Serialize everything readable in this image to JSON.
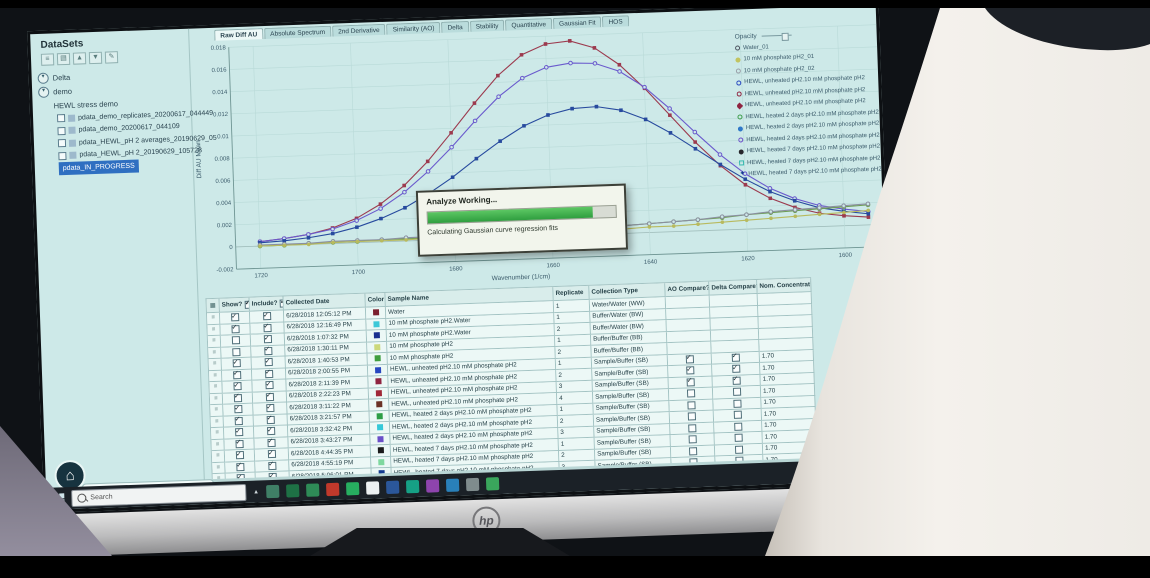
{
  "monitor": {
    "brand_logo": "hp"
  },
  "app": {
    "sidebar": {
      "title": "DataSets",
      "toolbar_icons": [
        "new-dataset-icon",
        "open-dataset-icon",
        "import-icon",
        "export-icon",
        "edit-icon"
      ],
      "toolbar_glyphs": [
        "≡",
        "▤",
        "▲",
        "▼",
        "✎"
      ],
      "tree": [
        {
          "type": "node",
          "label": "Delta",
          "expander": true
        },
        {
          "type": "node",
          "label": "demo",
          "expander": true
        },
        {
          "type": "node",
          "label": "HEWL stress demo",
          "expander": false
        },
        {
          "type": "leaf",
          "label": "pdata_demo_replicates_20200617_044449",
          "checked": false,
          "selected": false
        },
        {
          "type": "leaf",
          "label": "pdata_demo_20200617_044109",
          "checked": false,
          "selected": false
        },
        {
          "type": "leaf",
          "label": "pdata_HEWL_pH 2 averages_20190629_05",
          "checked": false,
          "selected": false
        },
        {
          "type": "leaf",
          "label": "pdata_HEWL_pH 2_20190629_105728",
          "checked": false,
          "selected": false
        },
        {
          "type": "leaf",
          "label": "pdata_IN_PROGRESS",
          "checked": false,
          "selected": true
        }
      ]
    },
    "tabs": {
      "items": [
        "Raw Diff AU",
        "Absolute Spectrum",
        "2nd Derivative",
        "Similarity (AO)",
        "Delta",
        "Stability",
        "Quantitative",
        "Gaussian Fit",
        "HOS"
      ],
      "active": "Raw Diff AU"
    },
    "legend": {
      "opacity_label": "Opacity",
      "entries": [
        {
          "label": "Water_01",
          "color": "#4a505c",
          "marker": "circle-open"
        },
        {
          "label": "10 mM phosphate pH2_01",
          "color": "#c2c460",
          "marker": "circle"
        },
        {
          "label": "10 mM phosphate pH2_02",
          "color": "#9aa0a8",
          "marker": "circle-open"
        },
        {
          "label": "HEWL, unheated pH2.10 mM phosphate pH2",
          "color": "#2747c0",
          "marker": "circle-open"
        },
        {
          "label": "HEWL, unheated pH2.10 mM phosphate pH2",
          "color": "#8f2440",
          "marker": "circle-open"
        },
        {
          "label": "HEWL, unheated pH2.10 mM phosphate pH2",
          "color": "#8f2440",
          "marker": "diamond"
        },
        {
          "label": "HEWL, heated 2 days pH2.10 mM phosphate pH2",
          "color": "#3f9e4d",
          "marker": "circle-open"
        },
        {
          "label": "HEWL, heated 2 days pH2.10 mM phosphate pH2",
          "color": "#2f78c8",
          "marker": "circle"
        },
        {
          "label": "HEWL, heated 2 days pH2.10 mM phosphate pH2",
          "color": "#6a4fc8",
          "marker": "circle-open"
        },
        {
          "label": "HEWL, heated 7 days pH2.10 mM phosphate pH2",
          "color": "#26262b",
          "marker": "circle"
        },
        {
          "label": "HEWL, heated 7 days pH2.10 mM phosphate pH2",
          "color": "#35b8ae",
          "marker": "square-open"
        },
        {
          "label": "HEWL, heated 7 days pH2.10 mM phosphate pH2",
          "color": "#123a8f",
          "marker": "star"
        }
      ]
    },
    "dialog": {
      "title": "Analyze Working...",
      "message": "Calculating Gaussian curve regression fits",
      "progress_percent": 88
    },
    "table": {
      "headers": [
        {
          "label": "",
          "checkbox": false
        },
        {
          "label": "Show?",
          "checkbox": true
        },
        {
          "label": "Include?",
          "checkbox": true
        },
        {
          "label": "Collected Date",
          "checkbox": false
        },
        {
          "label": "Color",
          "checkbox": false
        },
        {
          "label": "Sample Name",
          "checkbox": false
        },
        {
          "label": "Replicate",
          "checkbox": false
        },
        {
          "label": "Collection Type",
          "checkbox": false
        },
        {
          "label": "AO Compare?",
          "checkbox": true
        },
        {
          "label": "Delta Compare?",
          "checkbox": true
        },
        {
          "label": "Nom. Concentration",
          "checkbox": false
        }
      ],
      "rows": [
        {
          "show": true,
          "include": true,
          "date": "6/28/2018 12:05:12 PM",
          "color": "#7a1f2e",
          "sample": "Water",
          "replicate": "1",
          "collection": "Water/Water (WW)",
          "ao": null,
          "delta": null,
          "conc": ""
        },
        {
          "show": true,
          "include": true,
          "date": "6/28/2018 12:16:49 PM",
          "color": "#3cc8d8",
          "sample": "10 mM phosphate pH2.Water",
          "replicate": "1",
          "collection": "Buffer/Water (BW)",
          "ao": null,
          "delta": null,
          "conc": ""
        },
        {
          "show": false,
          "include": true,
          "date": "6/28/2018 1:07:32 PM",
          "color": "#1a2f8f",
          "sample": "10 mM phosphate pH2.Water",
          "replicate": "2",
          "collection": "Buffer/Water (BW)",
          "ao": null,
          "delta": null,
          "conc": ""
        },
        {
          "show": false,
          "include": true,
          "date": "6/28/2018 1:30:11 PM",
          "color": "#ccd87a",
          "sample": "10 mM phosphate pH2",
          "replicate": "1",
          "collection": "Buffer/Buffer (BB)",
          "ao": null,
          "delta": null,
          "conc": ""
        },
        {
          "show": true,
          "include": true,
          "date": "6/28/2018 1:40:53 PM",
          "color": "#3f9e3f",
          "sample": "10 mM phosphate pH2",
          "replicate": "2",
          "collection": "Buffer/Buffer (BB)",
          "ao": null,
          "delta": null,
          "conc": ""
        },
        {
          "show": true,
          "include": true,
          "date": "6/28/2018 2:00:55 PM",
          "color": "#2747c0",
          "sample": "HEWL, unheated pH2.10 mM phosphate pH2",
          "replicate": "1",
          "collection": "Sample/Buffer (SB)",
          "ao": "checked",
          "delta": "checked",
          "conc": "1.70"
        },
        {
          "show": true,
          "include": true,
          "date": "6/28/2018 2:11:39 PM",
          "color": "#8f2440",
          "sample": "HEWL, unheated pH2.10 mM phosphate pH2",
          "replicate": "2",
          "collection": "Sample/Buffer (SB)",
          "ao": "checked",
          "delta": "checked",
          "conc": "1.70"
        },
        {
          "show": true,
          "include": true,
          "date": "6/28/2018 2:22:23 PM",
          "color": "#a02838",
          "sample": "HEWL, unheated pH2.10 mM phosphate pH2",
          "replicate": "3",
          "collection": "Sample/Buffer (SB)",
          "ao": "checked",
          "delta": "checked",
          "conc": "1.70"
        },
        {
          "show": true,
          "include": true,
          "date": "6/28/2018 3:11:22 PM",
          "color": "#6b3226",
          "sample": "HEWL, unheated pH2.10 mM phosphate pH2",
          "replicate": "4",
          "collection": "Sample/Buffer (SB)",
          "ao": "unchecked",
          "delta": "unchecked",
          "conc": "1.70"
        },
        {
          "show": true,
          "include": true,
          "date": "6/28/2018 3:21:57 PM",
          "color": "#2f9e48",
          "sample": "HEWL, heated 2 days pH2.10 mM phosphate pH2",
          "replicate": "1",
          "collection": "Sample/Buffer (SB)",
          "ao": "unchecked",
          "delta": "unchecked",
          "conc": "1.70"
        },
        {
          "show": true,
          "include": true,
          "date": "6/28/2018 3:32:42 PM",
          "color": "#35c8d8",
          "sample": "HEWL, heated 2 days pH2.10 mM phosphate pH2",
          "replicate": "2",
          "collection": "Sample/Buffer (SB)",
          "ao": "unchecked",
          "delta": "unchecked",
          "conc": "1.70"
        },
        {
          "show": true,
          "include": true,
          "date": "6/28/2018 3:43:27 PM",
          "color": "#6a4fc8",
          "sample": "HEWL, heated 2 days pH2.10 mM phosphate pH2",
          "replicate": "3",
          "collection": "Sample/Buffer (SB)",
          "ao": "unchecked",
          "delta": "unchecked",
          "conc": "1.70"
        },
        {
          "show": true,
          "include": true,
          "date": "6/28/2018 4:44:35 PM",
          "color": "#1b1b1b",
          "sample": "HEWL, heated 7 days pH2.10 mM phosphate pH2",
          "replicate": "1",
          "collection": "Sample/Buffer (SB)",
          "ao": "unchecked",
          "delta": "unchecked",
          "conc": "1.70"
        },
        {
          "show": true,
          "include": true,
          "date": "6/28/2018 4:55:19 PM",
          "color": "#7fd89f",
          "sample": "HEWL, heated 7 days pH2.10 mM phosphate pH2",
          "replicate": "2",
          "collection": "Sample/Buffer (SB)",
          "ao": "unchecked",
          "delta": "unchecked",
          "conc": "1.70"
        },
        {
          "show": true,
          "include": true,
          "date": "6/28/2018 5:06:01 PM",
          "color": "#123a8f",
          "sample": "HEWL, heated 7 days pH2.10 mM phosphate pH2",
          "replicate": "3",
          "collection": "Sample/Buffer (SB)",
          "ao": "unchecked",
          "delta": "unchecked",
          "conc": "1.70"
        }
      ]
    },
    "taskbar": {
      "search_label": "Search",
      "icons": [
        {
          "name": "taskbar-app-icon-1",
          "color": "#3f7f66"
        },
        {
          "name": "taskbar-app-icon-2",
          "color": "#1e7145"
        },
        {
          "name": "taskbar-app-icon-3",
          "color": "#2e8b57"
        },
        {
          "name": "taskbar-app-icon-4",
          "color": "#c0392b"
        },
        {
          "name": "taskbar-app-icon-5",
          "color": "#27ae60"
        },
        {
          "name": "taskbar-app-icon-6",
          "color": "#ecf0f1"
        },
        {
          "name": "taskbar-app-icon-7",
          "color": "#2b579a"
        },
        {
          "name": "taskbar-app-icon-8",
          "color": "#16a085"
        },
        {
          "name": "taskbar-app-icon-9",
          "color": "#8e44ad"
        },
        {
          "name": "taskbar-app-icon-10",
          "color": "#2980b9"
        },
        {
          "name": "taskbar-app-icon-11",
          "color": "#7f8c8d"
        },
        {
          "name": "taskbar-app-icon-12",
          "color": "#3aa65c"
        }
      ]
    }
  },
  "chart_data": {
    "type": "line",
    "title": "",
    "xlabel": "Wavenumber (1/cm)",
    "ylabel": "Diff AU Mean",
    "xlim": [
      1725,
      1592
    ],
    "ylim": [
      -0.002,
      0.018
    ],
    "x_ticks": [
      1720,
      1700,
      1680,
      1660,
      1640,
      1620,
      1600
    ],
    "y_ticks": [
      -0.002,
      0,
      0.002,
      0.004,
      0.006,
      0.008,
      0.01,
      0.012,
      0.014,
      0.016,
      0.018
    ],
    "grid": true,
    "legend_position": "right",
    "x": [
      1720,
      1715,
      1710,
      1705,
      1700,
      1695,
      1690,
      1685,
      1680,
      1675,
      1670,
      1665,
      1660,
      1655,
      1650,
      1645,
      1640,
      1635,
      1630,
      1625,
      1620,
      1615,
      1610,
      1605,
      1600,
      1595
    ],
    "series": [
      {
        "name": "HEWL, unheated pH2.10 mM phosphate pH2",
        "color": "#9c3a4e",
        "marker": "square",
        "values": [
          0.0004,
          0.0006,
          0.0009,
          0.0014,
          0.0022,
          0.0034,
          0.005,
          0.0071,
          0.0096,
          0.0122,
          0.0146,
          0.0164,
          0.0173,
          0.0175,
          0.0168,
          0.0152,
          0.013,
          0.0105,
          0.008,
          0.0058,
          0.004,
          0.0027,
          0.0018,
          0.0012,
          0.0009,
          0.0007
        ]
      },
      {
        "name": "HEWL, heated 2 days pH2.10 mM phosphate pH2",
        "color": "#6a5acd",
        "marker": "circle-open",
        "values": [
          0.0004,
          0.0006,
          0.0009,
          0.0013,
          0.002,
          0.003,
          0.0044,
          0.0062,
          0.0083,
          0.0106,
          0.0127,
          0.0143,
          0.0152,
          0.0155,
          0.0154,
          0.0146,
          0.0131,
          0.0111,
          0.0089,
          0.0068,
          0.005,
          0.0036,
          0.0026,
          0.0019,
          0.0015,
          0.0012
        ]
      },
      {
        "name": "HEWL, heated 7 days pH2.10 mM phosphate pH2",
        "color": "#274a9e",
        "marker": "square",
        "values": [
          0.0003,
          0.0004,
          0.0006,
          0.0009,
          0.0014,
          0.0021,
          0.003,
          0.0042,
          0.0056,
          0.0072,
          0.0087,
          0.01,
          0.0109,
          0.0114,
          0.0115,
          0.0111,
          0.0102,
          0.0089,
          0.0074,
          0.0059,
          0.0045,
          0.0033,
          0.0024,
          0.0017,
          0.0013,
          0.001
        ]
      },
      {
        "name": "10 mM phosphate pH2",
        "color": "#6f9e55",
        "marker": "circle-open",
        "values": [
          0.0,
          0.0,
          0.0001,
          0.0001,
          0.0001,
          0.0002,
          0.0002,
          0.0002,
          0.0003,
          0.0003,
          0.0004,
          0.0004,
          0.0005,
          0.0005,
          0.0006,
          0.0007,
          0.0008,
          0.0009,
          0.001,
          0.0011,
          0.0013,
          0.0014,
          0.0015,
          0.0016,
          0.0017,
          0.0018
        ]
      },
      {
        "name": "Water",
        "color": "#8a8fa0",
        "marker": "circle-open",
        "values": [
          0.0001,
          0.0001,
          0.0001,
          0.0002,
          0.0002,
          0.0002,
          0.0003,
          0.0003,
          0.0003,
          0.0004,
          0.0004,
          0.0005,
          0.0005,
          0.0006,
          0.0006,
          0.0007,
          0.0008,
          0.0009,
          0.001,
          0.0012,
          0.0013,
          0.0015,
          0.0016,
          0.0017,
          0.0018,
          0.0019
        ]
      },
      {
        "name": "10 mM phosphate pH2.Water",
        "color": "#b8ba5e",
        "marker": "circle",
        "values": [
          0.0,
          0.0,
          0.0,
          0.0001,
          0.0001,
          0.0001,
          0.0001,
          0.0002,
          0.0002,
          0.0002,
          0.0002,
          0.0003,
          0.0003,
          0.0003,
          0.0004,
          0.0004,
          0.0005,
          0.0005,
          0.0006,
          0.0007,
          0.0008,
          0.0009,
          0.001,
          0.0011,
          0.0012,
          0.0013
        ]
      }
    ]
  }
}
